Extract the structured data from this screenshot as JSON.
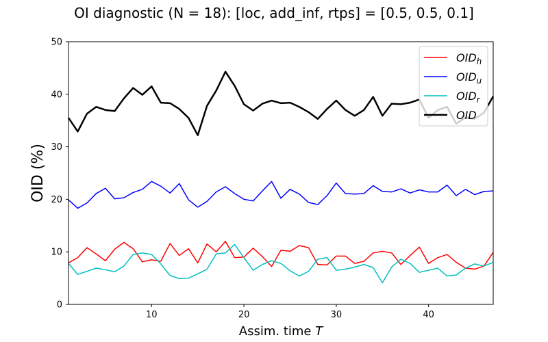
{
  "chart_data": {
    "type": "line",
    "title": "OI diagnostic  (N = 18): [loc, add_inf, rtps] = [0.5, 0.5, 0.1]",
    "xlabel": "Assim. time",
    "xlabel_symbol": "T",
    "ylabel": "OID (%)",
    "xlim": [
      1,
      47
    ],
    "ylim": [
      0,
      50
    ],
    "xticks": [
      10,
      20,
      30,
      40
    ],
    "yticks": [
      0,
      10,
      20,
      30,
      40,
      50
    ],
    "grid": false,
    "legend_position": "top-right",
    "x": [
      1,
      2,
      3,
      4,
      5,
      6,
      7,
      8,
      9,
      10,
      11,
      12,
      13,
      14,
      15,
      16,
      17,
      18,
      19,
      20,
      21,
      22,
      23,
      24,
      25,
      26,
      27,
      28,
      29,
      30,
      31,
      32,
      33,
      34,
      35,
      36,
      37,
      38,
      39,
      40,
      41,
      42,
      43,
      44,
      45,
      46,
      47
    ],
    "series": [
      {
        "name": "OID",
        "subscript": "h",
        "color": "#ff0000",
        "linewidth": 1.5,
        "values": [
          7.9,
          8.9,
          10.8,
          9.6,
          8.3,
          10.5,
          11.8,
          10.6,
          8.1,
          8.5,
          8.2,
          11.6,
          9.3,
          10.6,
          7.9,
          11.5,
          10.0,
          12.0,
          8.9,
          9.0,
          10.7,
          9.1,
          7.2,
          10.3,
          10.1,
          11.2,
          10.8,
          7.6,
          7.5,
          9.2,
          9.2,
          7.8,
          8.2,
          9.8,
          10.1,
          9.8,
          7.6,
          9.3,
          10.9,
          7.8,
          8.9,
          9.5,
          8.0,
          6.9,
          6.7,
          7.3,
          9.9
        ]
      },
      {
        "name": "OID",
        "subscript": "u",
        "color": "#0000ff",
        "linewidth": 1.5,
        "values": [
          19.9,
          18.3,
          19.3,
          21.1,
          22.1,
          20.1,
          20.3,
          21.3,
          21.9,
          23.4,
          22.5,
          21.2,
          23.0,
          19.9,
          18.5,
          19.6,
          21.4,
          22.4,
          21.1,
          20.0,
          19.7,
          21.6,
          23.4,
          20.2,
          21.9,
          21.0,
          19.4,
          19.0,
          20.7,
          23.1,
          21.1,
          21.0,
          21.1,
          22.6,
          21.5,
          21.4,
          22.0,
          21.2,
          21.8,
          21.4,
          21.4,
          22.7,
          20.7,
          21.9,
          20.9,
          21.5,
          21.6
        ]
      },
      {
        "name": "OID",
        "subscript": "r",
        "color": "#00bfbf",
        "linewidth": 1.5,
        "values": [
          7.8,
          5.7,
          6.3,
          6.9,
          6.6,
          6.2,
          7.3,
          9.5,
          9.8,
          9.5,
          7.7,
          5.5,
          4.9,
          5.0,
          5.8,
          6.7,
          9.6,
          9.8,
          11.4,
          8.9,
          6.5,
          7.6,
          8.3,
          7.8,
          6.4,
          5.4,
          6.3,
          8.6,
          8.9,
          6.5,
          6.7,
          7.1,
          7.6,
          7.0,
          4.1,
          7.1,
          8.6,
          7.8,
          6.1,
          6.5,
          6.9,
          5.4,
          5.6,
          6.9,
          7.7,
          7.3,
          8.0
        ]
      },
      {
        "name": "OID",
        "subscript": "",
        "color": "#000000",
        "linewidth": 2.5,
        "values": [
          35.5,
          32.9,
          36.3,
          37.6,
          37.0,
          36.8,
          39.2,
          41.2,
          39.9,
          41.5,
          38.4,
          38.3,
          37.2,
          35.5,
          32.2,
          37.8,
          40.7,
          44.3,
          41.6,
          38.1,
          36.9,
          38.2,
          38.8,
          38.3,
          38.4,
          37.6,
          36.6,
          35.3,
          37.2,
          38.8,
          37.0,
          35.9,
          37.0,
          39.5,
          35.9,
          38.2,
          38.1,
          38.4,
          39.0,
          35.5,
          37.0,
          37.6,
          34.4,
          35.6,
          35.3,
          36.5,
          39.6
        ]
      }
    ]
  }
}
